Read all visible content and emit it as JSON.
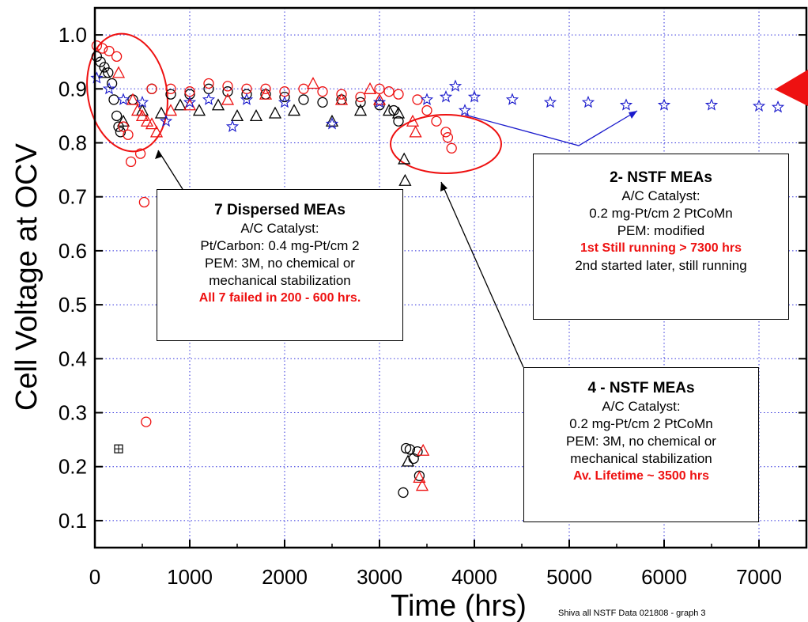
{
  "chart_data": {
    "type": "scatter",
    "title": "",
    "xlabel": "Time (hrs)",
    "ylabel": "Cell Voltage at OCV",
    "xlim": [
      0,
      7500
    ],
    "ylim": [
      0.05,
      1.05
    ],
    "x_ticks": [
      0,
      1000,
      2000,
      3000,
      4000,
      5000,
      6000,
      7000
    ],
    "y_ticks": [
      "0.1",
      "0.2",
      "0.3",
      "0.4",
      "0.5",
      "0.6",
      "0.7",
      "0.8",
      "0.9",
      "1.0"
    ],
    "grid": true,
    "series": [
      {
        "marker": "circle",
        "color": "#000000",
        "points": [
          [
            20,
            0.96
          ],
          [
            60,
            0.95
          ],
          [
            100,
            0.94
          ],
          [
            140,
            0.93
          ],
          [
            180,
            0.91
          ],
          [
            200,
            0.88
          ],
          [
            230,
            0.85
          ],
          [
            250,
            0.83
          ],
          [
            270,
            0.82
          ],
          [
            400,
            0.88
          ],
          [
            600,
            0.9
          ],
          [
            800,
            0.89
          ],
          [
            1000,
            0.89
          ],
          [
            1200,
            0.9
          ],
          [
            1400,
            0.895
          ],
          [
            1600,
            0.89
          ],
          [
            1800,
            0.89
          ],
          [
            2000,
            0.885
          ],
          [
            2200,
            0.88
          ],
          [
            2400,
            0.875
          ],
          [
            2600,
            0.88
          ],
          [
            2800,
            0.875
          ],
          [
            3000,
            0.87
          ],
          [
            3150,
            0.86
          ],
          [
            3200,
            0.84
          ],
          [
            3250,
            0.152
          ],
          [
            3280,
            0.234
          ],
          [
            3320,
            0.232
          ],
          [
            3360,
            0.215
          ],
          [
            3400,
            0.228
          ],
          [
            3420,
            0.183
          ]
        ]
      },
      {
        "marker": "triangle",
        "color": "#000000",
        "points": [
          [
            100,
            0.93
          ],
          [
            300,
            0.84
          ],
          [
            500,
            0.86
          ],
          [
            700,
            0.855
          ],
          [
            900,
            0.87
          ],
          [
            1100,
            0.86
          ],
          [
            1300,
            0.87
          ],
          [
            1500,
            0.85
          ],
          [
            1700,
            0.85
          ],
          [
            1900,
            0.855
          ],
          [
            2100,
            0.86
          ],
          [
            2500,
            0.84
          ],
          [
            2800,
            0.86
          ],
          [
            3100,
            0.86
          ],
          [
            3200,
            0.855
          ],
          [
            3260,
            0.77
          ],
          [
            3270,
            0.73
          ],
          [
            3300,
            0.21
          ]
        ]
      },
      {
        "marker": "circle",
        "color": "#ee1111",
        "points": [
          [
            20,
            0.98
          ],
          [
            80,
            0.975
          ],
          [
            150,
            0.97
          ],
          [
            230,
            0.96
          ],
          [
            300,
            0.83
          ],
          [
            350,
            0.815
          ],
          [
            380,
            0.765
          ],
          [
            480,
            0.78
          ],
          [
            520,
            0.69
          ],
          [
            540,
            0.283
          ],
          [
            600,
            0.9
          ],
          [
            800,
            0.9
          ],
          [
            1000,
            0.895
          ],
          [
            1200,
            0.91
          ],
          [
            1400,
            0.905
          ],
          [
            1600,
            0.9
          ],
          [
            1800,
            0.9
          ],
          [
            2000,
            0.895
          ],
          [
            2200,
            0.9
          ],
          [
            2400,
            0.895
          ],
          [
            2600,
            0.89
          ],
          [
            2800,
            0.885
          ],
          [
            3000,
            0.9
          ],
          [
            3100,
            0.895
          ],
          [
            3200,
            0.89
          ],
          [
            3400,
            0.88
          ],
          [
            3500,
            0.86
          ],
          [
            3600,
            0.84
          ],
          [
            3700,
            0.82
          ],
          [
            3720,
            0.81
          ],
          [
            3760,
            0.79
          ]
        ]
      },
      {
        "marker": "triangle",
        "color": "#ee1111",
        "points": [
          [
            250,
            0.93
          ],
          [
            400,
            0.88
          ],
          [
            450,
            0.86
          ],
          [
            500,
            0.85
          ],
          [
            550,
            0.84
          ],
          [
            600,
            0.835
          ],
          [
            650,
            0.82
          ],
          [
            800,
            0.86
          ],
          [
            1000,
            0.87
          ],
          [
            1400,
            0.88
          ],
          [
            1800,
            0.89
          ],
          [
            2300,
            0.91
          ],
          [
            2600,
            0.88
          ],
          [
            2900,
            0.9
          ],
          [
            3000,
            0.88
          ],
          [
            3350,
            0.84
          ],
          [
            3380,
            0.82
          ],
          [
            3420,
            0.18
          ],
          [
            3450,
            0.165
          ],
          [
            3460,
            0.23
          ]
        ]
      },
      {
        "marker": "star",
        "color": "#1a1acc",
        "points": [
          [
            20,
            0.92
          ],
          [
            150,
            0.9
          ],
          [
            300,
            0.88
          ],
          [
            500,
            0.875
          ],
          [
            750,
            0.84
          ],
          [
            1000,
            0.875
          ],
          [
            1200,
            0.88
          ],
          [
            1450,
            0.83
          ],
          [
            1600,
            0.88
          ],
          [
            2000,
            0.875
          ],
          [
            2500,
            0.835
          ],
          [
            3000,
            0.875
          ],
          [
            3500,
            0.88
          ],
          [
            3700,
            0.885
          ],
          [
            3800,
            0.905
          ],
          [
            3900,
            0.86
          ],
          [
            4000,
            0.885
          ],
          [
            4400,
            0.88
          ],
          [
            4800,
            0.875
          ],
          [
            5200,
            0.875
          ],
          [
            5600,
            0.87
          ],
          [
            6000,
            0.87
          ],
          [
            6500,
            0.87
          ],
          [
            7000,
            0.868
          ],
          [
            7200,
            0.866
          ]
        ]
      },
      {
        "marker": "boxplus",
        "color": "#000000",
        "points": [
          [
            250,
            0.233
          ]
        ]
      }
    ],
    "annotations": [
      {
        "title": "7 Dispersed MEAs",
        "lines": [
          "A/C Catalyst:",
          "Pt/Carbon: 0.4 mg-Pt/cm 2",
          "PEM: 3M, no chemical or",
          "mechanical stabilization"
        ],
        "highlight": "All 7 failed in 200 - 600 hrs."
      },
      {
        "title": "2- NSTF MEAs",
        "lines": [
          "A/C Catalyst:",
          "0.2 mg-Pt/cm 2 PtCoMn",
          "PEM: modified"
        ],
        "highlight": "1st Still running > 7300 hrs",
        "footer": "2nd started later, still running"
      },
      {
        "title": "4 - NSTF MEAs",
        "lines": [
          "A/C Catalyst:",
          "0.2 mg-Pt/cm 2 PtCoMn",
          "PEM: 3M, no chemical or",
          "mechanical stabilization"
        ],
        "highlight": "Av. Lifetime ~ 3500 hrs"
      }
    ],
    "source_note": "Shiva all NSTF Data 021808 - graph 3"
  },
  "colors": {
    "red": "#ee1111",
    "blue": "#1a1acc",
    "grid": "#3333dd"
  }
}
